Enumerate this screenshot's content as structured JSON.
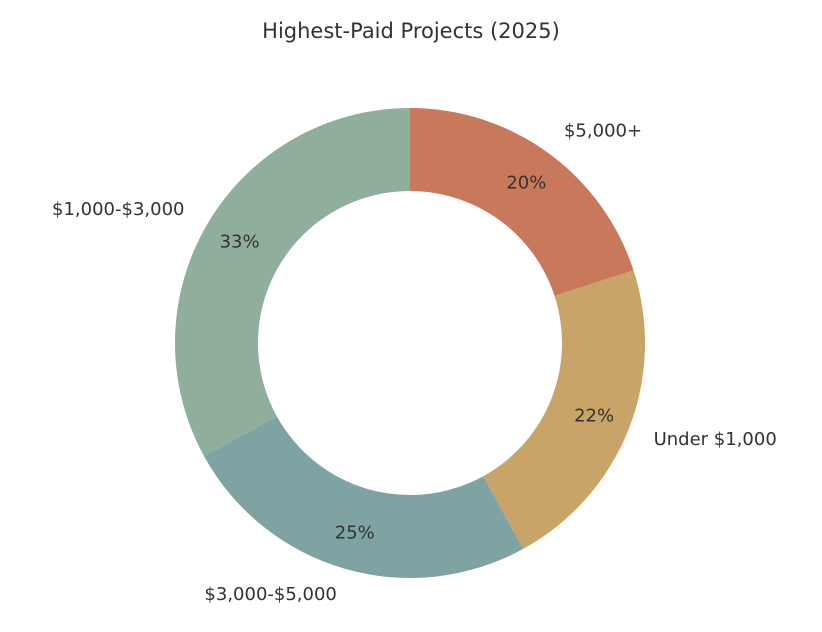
{
  "chart_data": {
    "type": "pie",
    "title": "Highest-Paid Projects (2025)",
    "donut": true,
    "categories": [
      "$5,000+",
      "Under $1,000",
      "$3,000-$5,000",
      "$1,000-$3,000"
    ],
    "values": [
      20,
      22,
      25,
      33
    ],
    "percent_labels": [
      "20%",
      "22%",
      "25%",
      "33%"
    ],
    "colors": [
      "#c8795b",
      "#c8a468",
      "#7fa3a3",
      "#8fae9c"
    ],
    "start_angle": "12 o'clock",
    "direction": "clockwise",
    "legend": "none"
  }
}
